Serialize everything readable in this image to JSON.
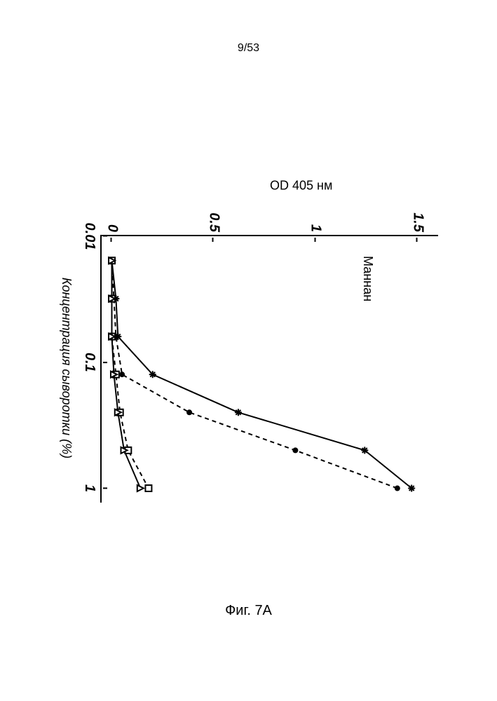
{
  "page_header": "9/53",
  "figure_caption": "Фиг. 7A",
  "chart": {
    "type": "line",
    "title": "Маннан",
    "xlabel": "Концентрация сыворотки (%)",
    "ylabel": "OD 405 нм",
    "title_fontsize": 18,
    "label_fontsize": 18,
    "tick_fontsize": 20,
    "tick_fontstyle": "italic bold",
    "background_color": "#ffffff",
    "axis_color": "#000000",
    "axis_width": 2,
    "x_scale": "log",
    "xlim": [
      0.01,
      1.3
    ],
    "ylim": [
      -0.05,
      1.6
    ],
    "xticks": [
      {
        "value": 0.01,
        "label": "0.01"
      },
      {
        "value": 0.1,
        "label": "0.1"
      },
      {
        "value": 1,
        "label": "1"
      }
    ],
    "yticks": [
      {
        "value": 0,
        "label": "0"
      },
      {
        "value": 0.5,
        "label": "0.5"
      },
      {
        "value": 1,
        "label": "1"
      },
      {
        "value": 1.5,
        "label": "1.5"
      }
    ],
    "x_values": [
      0.0156,
      0.0313,
      0.0625,
      0.125,
      0.25,
      0.5,
      1.0
    ],
    "series": [
      {
        "name": "series-asterisk",
        "marker": "asterisk",
        "marker_size": 10,
        "line_style": "solid",
        "line_width": 2,
        "color": "#000000",
        "y": [
          0.0,
          0.02,
          0.03,
          0.2,
          0.62,
          1.24,
          1.47
        ]
      },
      {
        "name": "series-dot",
        "marker": "filled-circle",
        "marker_size": 8,
        "line_style": "dashed",
        "line_width": 2,
        "color": "#000000",
        "y": [
          0.0,
          0.01,
          0.02,
          0.05,
          0.38,
          0.9,
          1.4
        ]
      },
      {
        "name": "series-square",
        "marker": "open-square",
        "marker_size": 9,
        "line_style": "dashed",
        "line_width": 2,
        "color": "#000000",
        "y": [
          0.0,
          0.0,
          0.0,
          0.02,
          0.04,
          0.08,
          0.18
        ]
      },
      {
        "name": "series-triangle",
        "marker": "open-triangle",
        "marker_size": 9,
        "line_style": "solid",
        "line_width": 2,
        "color": "#000000",
        "y": [
          0.0,
          0.0,
          0.0,
          0.01,
          0.03,
          0.06,
          0.14
        ]
      }
    ]
  }
}
